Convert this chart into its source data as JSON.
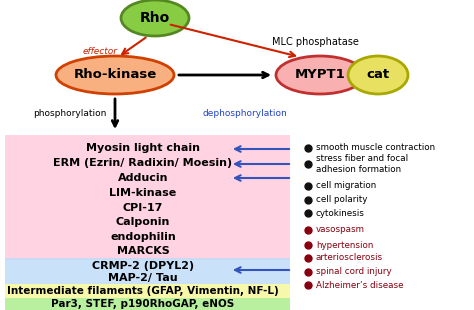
{
  "bg_color": "#ffffff",
  "pink_items": [
    "Myosin light chain",
    "ERM (Ezrin/ Radixin/ Moesin)",
    "Adducin",
    "LIM-kinase",
    "CPI-17",
    "Calponin",
    "endophilin",
    "MARCKS"
  ],
  "blue_items": [
    "CRMP-2 (DPYL2)",
    "MAP-2/ Tau"
  ],
  "yellow_item": "Intermediate filaments (GFAP, Vimentin, NF-L)",
  "green_item": "Par3, STEF, p190RhoGAP, eNOS",
  "right_black_items": [
    "smooth muscle contraction",
    "stress fiber and focal\nadhesion formation",
    "cell migration",
    "cell polarity",
    "cytokinesis"
  ],
  "right_red_items": [
    "vasospasm",
    "hypertension",
    "arteriosclerosis",
    "spinal cord injury",
    "Alzheimer’s disease"
  ]
}
